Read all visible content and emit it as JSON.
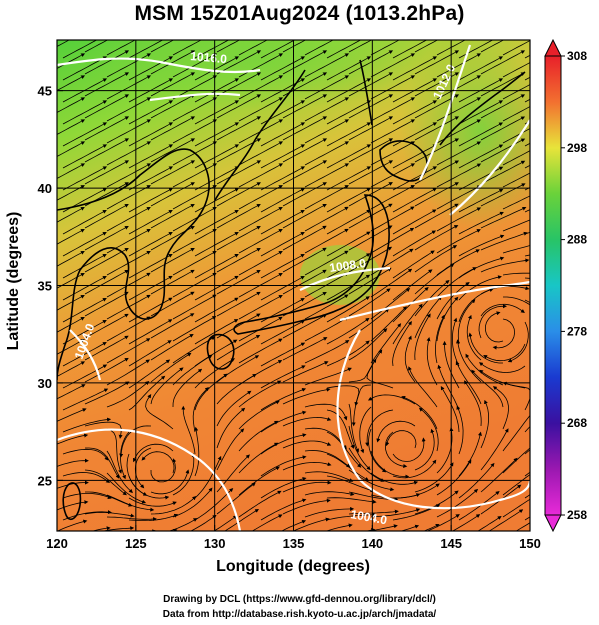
{
  "title": "MSM 15Z01Aug2024 (1013.2hPa)",
  "xlabel": "Longitude (degrees)",
  "ylabel": "Latitude  (degrees)",
  "credits": [
    "Drawing by DCL (https://www.gfd-dennou.org/library/dcl/)",
    "Data from http://database.rish.kyoto-u.ac.jp/arch/jmadata/"
  ],
  "map": {
    "lon_range": [
      120,
      150
    ],
    "lat_range": [
      22.4,
      47.6
    ],
    "lon_ticks": [
      "120",
      "125",
      "130",
      "135",
      "140",
      "145",
      "150"
    ],
    "lat_ticks": [
      "25",
      "30",
      "35",
      "40",
      "45"
    ],
    "contour_labels": [
      "1004.0",
      "1004.0",
      "1016.0",
      "1012.0",
      "1008.0"
    ],
    "colorbar": {
      "min": 258,
      "max": 308,
      "ticks": [
        "258",
        "268",
        "278",
        "288",
        "298",
        "308"
      ]
    },
    "colors": {
      "contour": "#ffffff",
      "streamline": "#000000",
      "grid": "#000000"
    }
  }
}
